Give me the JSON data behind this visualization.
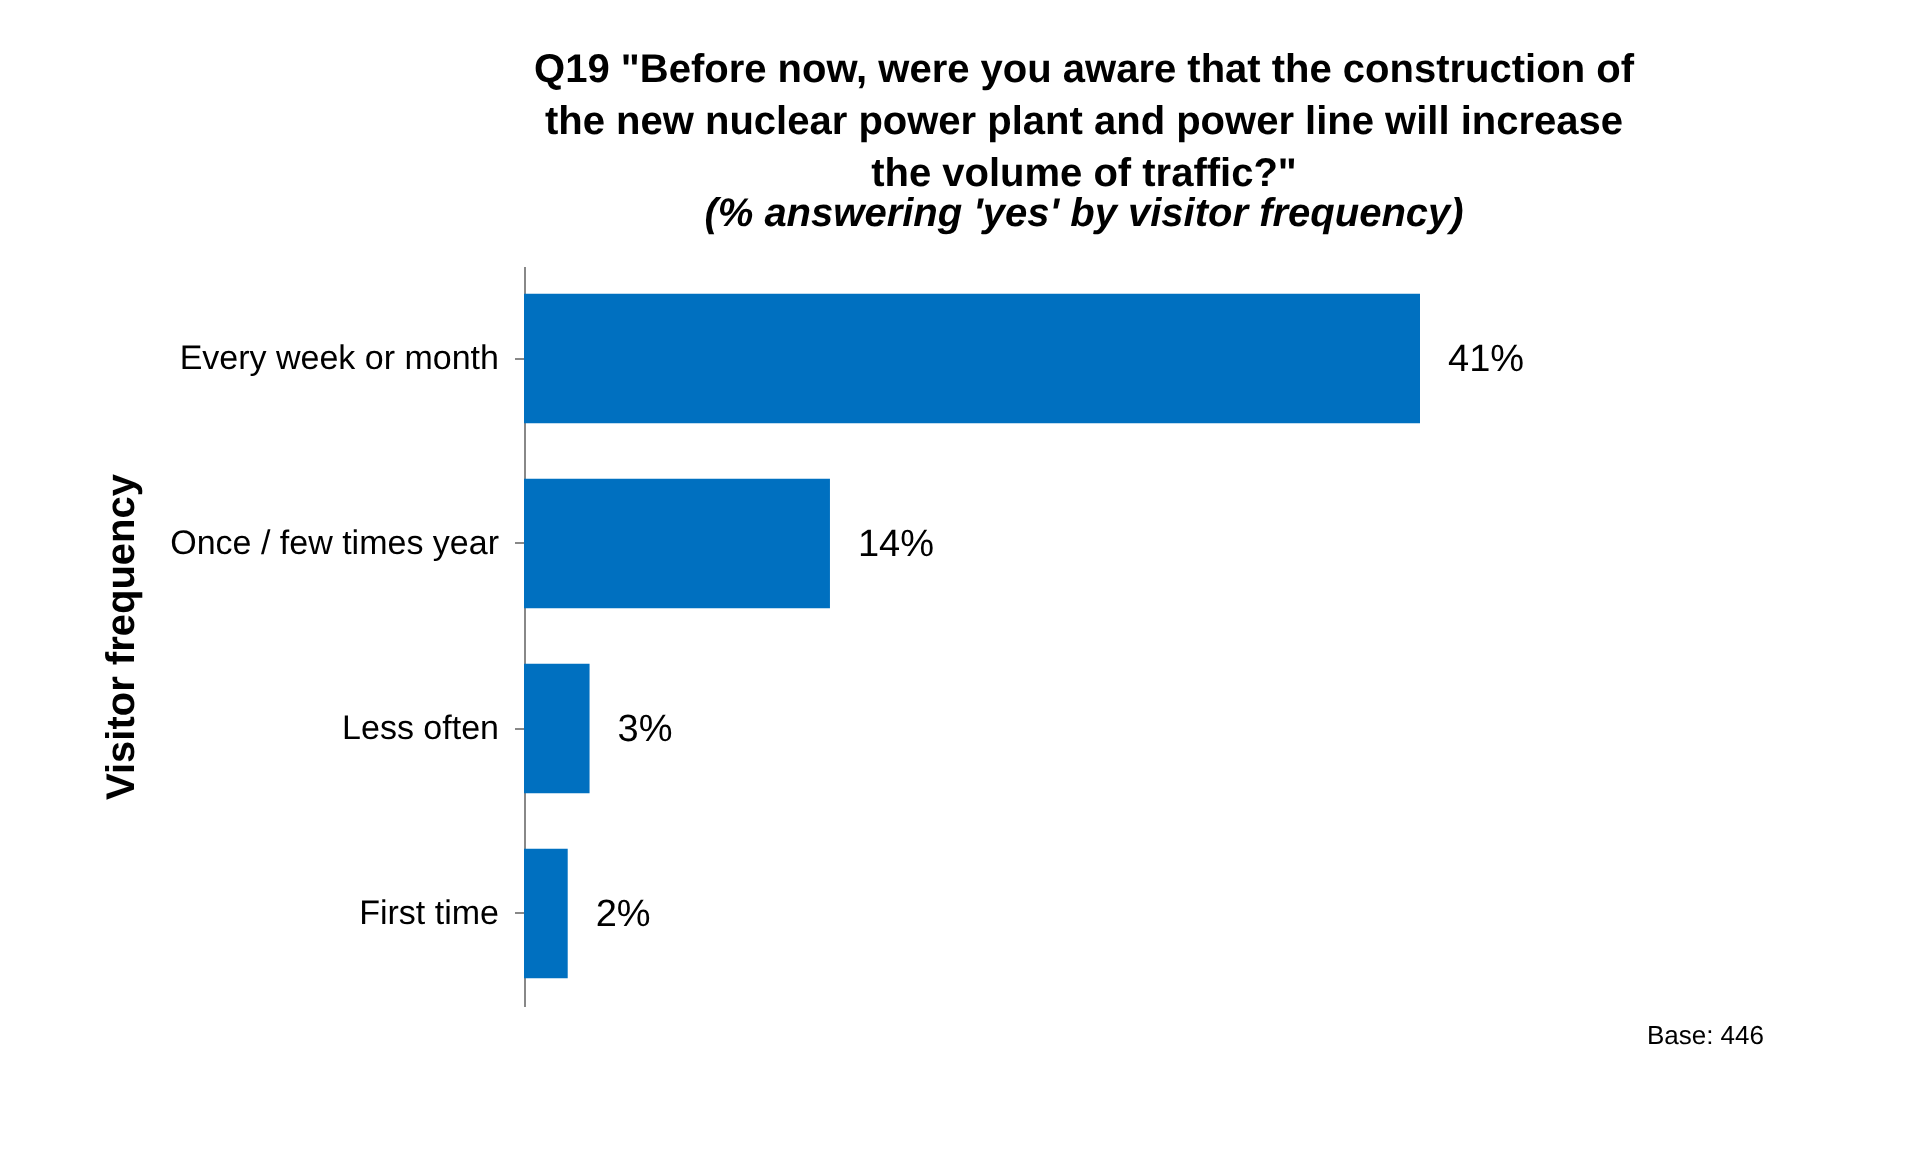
{
  "chart_data": {
    "type": "bar",
    "orientation": "horizontal",
    "title": "Q19 \"Before now, were you aware that the construction of the new nuclear power plant and power line will increase the volume of traffic?\"",
    "subtitle": "(% answering 'yes' by visitor frequency)",
    "ylabel": "Visitor frequency",
    "categories": [
      "Every week or month",
      "Once / few times year",
      "Less often",
      "First time"
    ],
    "values": [
      41,
      14,
      3,
      2
    ],
    "value_labels": [
      "41%",
      "14%",
      "3%",
      "2%"
    ],
    "color": "#0070c0",
    "annotations": [
      "Base: 446"
    ]
  }
}
